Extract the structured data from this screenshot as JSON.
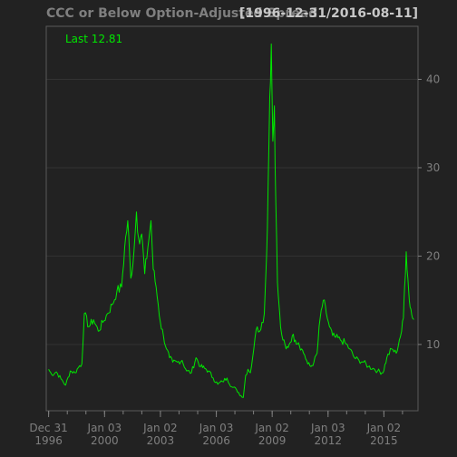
{
  "chart_data": {
    "type": "line",
    "title": "CCC or Below Option-Adjusted Spread",
    "subtitle": "[1996-12-31/2016-08-11]",
    "last_label": "Last 12.81",
    "line_color": "#00e600",
    "background": "#222222",
    "grid": true,
    "ylim": [
      2.5,
      46
    ],
    "xlim": [
      "1996-11-15",
      "2016-11-01"
    ],
    "y_ticks": [
      10,
      20,
      30,
      40
    ],
    "x_ticks": [
      {
        "date": "1996-12-31",
        "label": [
          "Dec 31",
          "1996"
        ]
      },
      {
        "date": "2000-01-03",
        "label": [
          "Jan 03",
          "2000"
        ]
      },
      {
        "date": "2003-01-02",
        "label": [
          "Jan 02",
          "2003"
        ]
      },
      {
        "date": "2006-01-03",
        "label": [
          "Jan 03",
          "2006"
        ]
      },
      {
        "date": "2009-01-02",
        "label": [
          "Jan 02",
          "2009"
        ]
      },
      {
        "date": "2012-01-03",
        "label": [
          "Jan 03",
          "2012"
        ]
      },
      {
        "date": "2015-01-02",
        "label": [
          "Jan 02",
          "2015"
        ]
      }
    ],
    "series": [
      {
        "x": [
          "1996-12-31",
          "1997-03-01",
          "1997-06-01",
          "1997-09-01",
          "1997-12-01",
          "1998-03-01",
          "1998-06-01",
          "1998-09-01",
          "1998-10-15",
          "1998-12-01",
          "1999-03-01",
          "1999-06-01",
          "1999-09-01",
          "1999-12-01",
          "2000-03-01",
          "2000-06-01",
          "2000-09-01",
          "2000-12-01",
          "2001-02-01",
          "2001-04-01",
          "2001-06-01",
          "2001-08-01",
          "2001-09-20",
          "2001-11-01",
          "2002-01-01",
          "2002-03-01",
          "2002-05-01",
          "2002-07-01",
          "2002-08-15",
          "2002-10-10",
          "2002-11-20",
          "2003-01-02",
          "2003-03-01",
          "2003-05-01",
          "2003-07-01",
          "2003-09-01",
          "2003-12-01",
          "2004-03-01",
          "2004-06-01",
          "2004-09-01",
          "2004-12-01",
          "2005-03-01",
          "2005-05-15",
          "2005-08-01",
          "2005-11-01",
          "2006-02-01",
          "2006-05-01",
          "2006-08-01",
          "2006-11-01",
          "2007-02-01",
          "2007-05-01",
          "2007-06-15",
          "2007-08-01",
          "2007-09-15",
          "2007-11-01",
          "2007-12-15",
          "2008-02-01",
          "2008-03-15",
          "2008-05-01",
          "2008-06-15",
          "2008-08-01",
          "2008-09-15",
          "2008-10-15",
          "2008-11-15",
          "2008-12-15",
          "2009-01-15",
          "2009-02-15",
          "2009-03-15",
          "2009-04-15",
          "2009-05-15",
          "2009-06-15",
          "2009-08-01",
          "2009-10-01",
          "2009-12-01",
          "2010-02-01",
          "2010-04-01",
          "2010-06-01",
          "2010-08-01",
          "2010-10-01",
          "2010-12-01",
          "2011-02-01",
          "2011-04-01",
          "2011-06-01",
          "2011-08-01",
          "2011-10-01",
          "2011-12-01",
          "2012-02-01",
          "2012-04-01",
          "2012-06-01",
          "2012-09-01",
          "2012-12-01",
          "2013-03-01",
          "2013-06-01",
          "2013-09-01",
          "2013-12-01",
          "2014-03-01",
          "2014-06-01",
          "2014-09-01",
          "2014-12-15",
          "2015-03-01",
          "2015-06-01",
          "2015-09-01",
          "2015-11-01",
          "2015-12-15",
          "2016-01-20",
          "2016-02-11",
          "2016-03-15",
          "2016-04-15",
          "2016-05-15",
          "2016-06-15",
          "2016-07-15",
          "2016-08-11"
        ],
        "y": [
          7.2,
          6.6,
          6.9,
          6.1,
          5.4,
          7.0,
          6.8,
          7.6,
          7.8,
          13.5,
          12.0,
          12.8,
          11.5,
          12.5,
          13.5,
          14.5,
          16.0,
          16.5,
          21.0,
          24.0,
          17.5,
          20.5,
          25.0,
          22.0,
          22.5,
          18.0,
          21.0,
          24.0,
          18.5,
          16.5,
          14.5,
          12.5,
          11.0,
          9.5,
          8.5,
          8.0,
          8.0,
          8.2,
          7.0,
          6.8,
          8.5,
          7.5,
          7.3,
          7.0,
          6.2,
          5.5,
          5.8,
          6.2,
          5.2,
          4.9,
          4.2,
          4.0,
          6.5,
          7.2,
          6.8,
          8.5,
          10.8,
          12.0,
          11.5,
          12.5,
          13.5,
          20.0,
          28.0,
          38.0,
          44.0,
          33.0,
          37.0,
          26.0,
          17.0,
          14.5,
          12.0,
          10.5,
          9.5,
          10.0,
          11.0,
          10.5,
          10.2,
          9.5,
          8.8,
          7.8,
          7.5,
          8.0,
          9.0,
          13.0,
          15.0,
          13.5,
          12.0,
          11.0,
          10.8,
          10.5,
          10.2,
          9.5,
          8.5,
          8.2,
          8.0,
          7.5,
          7.3,
          7.0,
          6.8,
          8.5,
          9.5,
          9.0,
          10.5,
          11.5,
          13.0,
          16.5,
          20.5,
          17.5,
          15.0,
          14.0,
          13.0,
          12.81
        ]
      }
    ]
  }
}
